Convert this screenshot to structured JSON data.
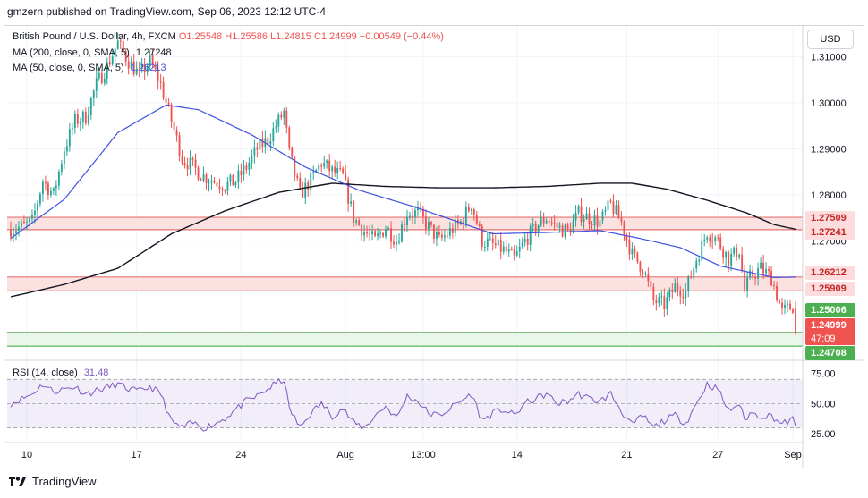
{
  "header": {
    "publisher": "gmzern published on TradingView.com, Sep 06, 2023 12:12 UTC-4"
  },
  "legend": {
    "symbol": "British Pound / U.S. Dollar, 4h, FXCM",
    "open": "O1.25548",
    "high": "H1.25586",
    "low": "L1.24815",
    "close": "C1.24999",
    "change": "−0.00549 (−0.44%)",
    "ma200_label": "MA (200, close, 0, SMA, 5)",
    "ma200_value": "1.27248",
    "ma50_label": "MA (50, close, 0, SMA, 5)",
    "ma50_value": "1.26213",
    "rsi_label": "RSI (14, close)",
    "rsi_value": "31.48"
  },
  "currency_button": "USD",
  "price_tags": {
    "r1_top": "1.27509",
    "r1_bottom": "1.27241",
    "r2_top": "1.26212",
    "r2_bottom": "1.25909",
    "s_top": "1.25006",
    "last_price": "1.24999",
    "countdown": "47:09",
    "s_bottom": "1.24708"
  },
  "colors": {
    "up": "#26a69a",
    "down": "#ef5350",
    "ma200": "#131722",
    "ma50": "#3f51e0",
    "rsi": "#7e57c2",
    "zone_red_fill": "#fcdcdc",
    "zone_red_line": "#e57373",
    "zone_green_fill": "#e6f4e6",
    "zone_green_line": "#4caf50"
  },
  "footer": {
    "brand": "TradingView"
  },
  "chart_data": {
    "type": "candlestick",
    "title": "British Pound / U.S. Dollar, 4h, FXCM",
    "price_axis": {
      "ticks": [
        1.31,
        1.3,
        1.29,
        1.28,
        1.27
      ],
      "tick_labels": [
        "1.31000",
        "1.30000",
        "1.29000",
        "1.28000",
        "1.27000"
      ],
      "range": [
        1.2442,
        1.3165
      ]
    },
    "rsi_axis": {
      "ticks": [
        75,
        50,
        25
      ],
      "tick_labels": [
        "75.00",
        "50.00",
        "25.00"
      ],
      "range": [
        20,
        85
      ],
      "band": [
        30,
        70
      ]
    },
    "time_axis": {
      "labels": [
        "10",
        "17",
        "24",
        "Aug",
        "13:00",
        "14",
        "21",
        "27",
        "Sep"
      ],
      "label_bars": [
        6,
        47,
        86,
        125,
        154,
        189,
        230,
        264,
        292
      ]
    },
    "zones": [
      {
        "name": "resistance-1",
        "top": 1.27509,
        "bottom": 1.27241,
        "color": "red"
      },
      {
        "name": "resistance-2",
        "top": 1.26212,
        "bottom": 1.25909,
        "color": "red"
      },
      {
        "name": "support",
        "top": 1.25006,
        "bottom": 1.24708,
        "color": "green"
      }
    ],
    "anchors": [
      [
        0,
        1.2725
      ],
      [
        4,
        1.273
      ],
      [
        8,
        1.274
      ],
      [
        12,
        1.283
      ],
      [
        16,
        1.28
      ],
      [
        20,
        1.29
      ],
      [
        24,
        1.296
      ],
      [
        28,
        1.297
      ],
      [
        32,
        1.304
      ],
      [
        36,
        1.308
      ],
      [
        40,
        1.313
      ],
      [
        44,
        1.309
      ],
      [
        48,
        1.306
      ],
      [
        52,
        1.309
      ],
      [
        56,
        1.304
      ],
      [
        60,
        1.296
      ],
      [
        64,
        1.288
      ],
      [
        68,
        1.286
      ],
      [
        72,
        1.284
      ],
      [
        76,
        1.283
      ],
      [
        80,
        1.282
      ],
      [
        84,
        1.283
      ],
      [
        88,
        1.286
      ],
      [
        92,
        1.29
      ],
      [
        96,
        1.292
      ],
      [
        100,
        1.296
      ],
      [
        102,
        1.298
      ],
      [
        104,
        1.289
      ],
      [
        108,
        1.28
      ],
      [
        112,
        1.283
      ],
      [
        116,
        1.287
      ],
      [
        120,
        1.285
      ],
      [
        124,
        1.284
      ],
      [
        128,
        1.275
      ],
      [
        132,
        1.272
      ],
      [
        136,
        1.27
      ],
      [
        140,
        1.273
      ],
      [
        144,
        1.27
      ],
      [
        148,
        1.276
      ],
      [
        152,
        1.276
      ],
      [
        156,
        1.273
      ],
      [
        160,
        1.27
      ],
      [
        164,
        1.272
      ],
      [
        168,
        1.274
      ],
      [
        172,
        1.278
      ],
      [
        176,
        1.27
      ],
      [
        180,
        1.269
      ],
      [
        184,
        1.268
      ],
      [
        188,
        1.266
      ],
      [
        192,
        1.27
      ],
      [
        196,
        1.273
      ],
      [
        200,
        1.275
      ],
      [
        204,
        1.273
      ],
      [
        208,
        1.272
      ],
      [
        212,
        1.276
      ],
      [
        216,
        1.275
      ],
      [
        220,
        1.274
      ],
      [
        224,
        1.278
      ],
      [
        228,
        1.274
      ],
      [
        232,
        1.267
      ],
      [
        236,
        1.264
      ],
      [
        240,
        1.257
      ],
      [
        244,
        1.256
      ],
      [
        248,
        1.26
      ],
      [
        252,
        1.259
      ],
      [
        256,
        1.266
      ],
      [
        260,
        1.272
      ],
      [
        264,
        1.27
      ],
      [
        268,
        1.266
      ],
      [
        272,
        1.268
      ],
      [
        274,
        1.259
      ],
      [
        276,
        1.262
      ],
      [
        280,
        1.264
      ],
      [
        284,
        1.262
      ],
      [
        288,
        1.2545
      ],
      [
        292,
        1.2558
      ],
      [
        293,
        1.25
      ]
    ],
    "bar_count": 294,
    "ma50": [
      [
        0,
        1.2705
      ],
      [
        20,
        1.279
      ],
      [
        40,
        1.2935
      ],
      [
        58,
        1.2995
      ],
      [
        70,
        1.2985
      ],
      [
        90,
        1.293
      ],
      [
        110,
        1.286
      ],
      [
        130,
        1.281
      ],
      [
        150,
        1.2775
      ],
      [
        170,
        1.2735
      ],
      [
        180,
        1.2715
      ],
      [
        200,
        1.2718
      ],
      [
        220,
        1.2722
      ],
      [
        235,
        1.2705
      ],
      [
        250,
        1.2685
      ],
      [
        265,
        1.2645
      ],
      [
        285,
        1.262
      ],
      [
        293,
        1.2621
      ]
    ],
    "ma200": [
      [
        0,
        1.2578
      ],
      [
        20,
        1.2605
      ],
      [
        40,
        1.264
      ],
      [
        60,
        1.2715
      ],
      [
        80,
        1.2765
      ],
      [
        100,
        1.2805
      ],
      [
        120,
        1.2825
      ],
      [
        140,
        1.2818
      ],
      [
        160,
        1.2815
      ],
      [
        180,
        1.2815
      ],
      [
        200,
        1.2818
      ],
      [
        220,
        1.2825
      ],
      [
        232,
        1.2825
      ],
      [
        245,
        1.2812
      ],
      [
        260,
        1.2788
      ],
      [
        275,
        1.276
      ],
      [
        285,
        1.2735
      ],
      [
        293,
        1.2725
      ]
    ],
    "rsi": [
      [
        0,
        50
      ],
      [
        8,
        58
      ],
      [
        12,
        66
      ],
      [
        16,
        60
      ],
      [
        20,
        62
      ],
      [
        24,
        64
      ],
      [
        28,
        58
      ],
      [
        34,
        62
      ],
      [
        40,
        66
      ],
      [
        44,
        62
      ],
      [
        48,
        60
      ],
      [
        52,
        64
      ],
      [
        56,
        58
      ],
      [
        60,
        35
      ],
      [
        64,
        30
      ],
      [
        68,
        34
      ],
      [
        72,
        30
      ],
      [
        76,
        33
      ],
      [
        80,
        38
      ],
      [
        84,
        45
      ],
      [
        88,
        52
      ],
      [
        92,
        56
      ],
      [
        96,
        62
      ],
      [
        100,
        68
      ],
      [
        102,
        70
      ],
      [
        104,
        46
      ],
      [
        108,
        30
      ],
      [
        112,
        42
      ],
      [
        116,
        50
      ],
      [
        120,
        40
      ],
      [
        124,
        46
      ],
      [
        128,
        34
      ],
      [
        132,
        30
      ],
      [
        136,
        40
      ],
      [
        140,
        48
      ],
      [
        144,
        38
      ],
      [
        148,
        56
      ],
      [
        152,
        52
      ],
      [
        156,
        42
      ],
      [
        160,
        40
      ],
      [
        164,
        46
      ],
      [
        168,
        52
      ],
      [
        172,
        58
      ],
      [
        176,
        36
      ],
      [
        180,
        42
      ],
      [
        184,
        45
      ],
      [
        188,
        40
      ],
      [
        192,
        50
      ],
      [
        196,
        54
      ],
      [
        200,
        58
      ],
      [
        204,
        50
      ],
      [
        208,
        52
      ],
      [
        212,
        58
      ],
      [
        216,
        54
      ],
      [
        220,
        52
      ],
      [
        224,
        58
      ],
      [
        228,
        44
      ],
      [
        232,
        32
      ],
      [
        236,
        40
      ],
      [
        240,
        30
      ],
      [
        244,
        36
      ],
      [
        248,
        40
      ],
      [
        252,
        34
      ],
      [
        256,
        50
      ],
      [
        260,
        66
      ],
      [
        264,
        62
      ],
      [
        268,
        44
      ],
      [
        272,
        50
      ],
      [
        274,
        36
      ],
      [
        276,
        42
      ],
      [
        280,
        40
      ],
      [
        284,
        40
      ],
      [
        288,
        33
      ],
      [
        292,
        37
      ],
      [
        293,
        31.48
      ]
    ]
  }
}
